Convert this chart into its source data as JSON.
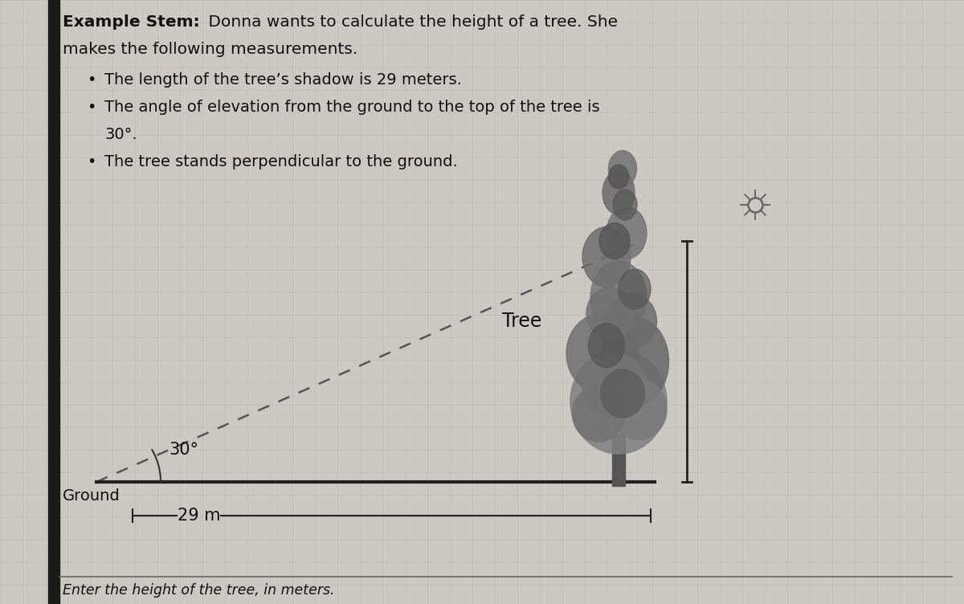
{
  "background_color": "#cdc8c2",
  "title_bold": "Example Stem:",
  "title_rest": " Donna wants to calculate the height of a tree. She",
  "title_line2": "makes the following measurements.",
  "bullets": [
    "The length of the tree’s shadow is 29 meters.",
    "The angle of elevation from the ground to the top of the tree is\n30°.",
    "The tree stands perpendicular to the ground."
  ],
  "diagram_label_tree": "Tree",
  "diagram_label_ground": "Ground",
  "diagram_label_distance": "29 m",
  "diagram_label_angle": "30°",
  "footer_text": "Enter the height of the tree, in meters.",
  "text_color": "#111111",
  "dark_color": "#222222",
  "grid_color": "#b5b0aa",
  "left_bar_color": "#1a1a1a",
  "line_color": "#333333"
}
